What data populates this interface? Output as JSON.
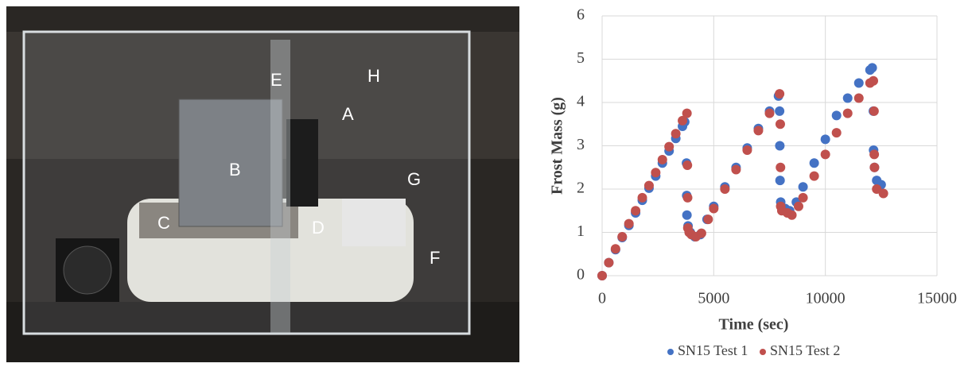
{
  "photo": {
    "labels": [
      "A",
      "B",
      "C",
      "D",
      "E",
      "F",
      "G",
      "H"
    ]
  },
  "chart_data": {
    "type": "scatter",
    "xlabel": "Time (sec)",
    "ylabel": "Frost Mass (g)",
    "xlim": [
      0,
      15000
    ],
    "xticks": [
      0,
      5000,
      10000,
      15000
    ],
    "ylim": [
      0,
      6
    ],
    "yticks": [
      0,
      1,
      2,
      3,
      4,
      5,
      6
    ],
    "grid": true,
    "legend": "bottom",
    "series": [
      {
        "name": "SN15 Test 1",
        "color": "#4472c4",
        "x": [
          0,
          300,
          600,
          900,
          1200,
          1500,
          1800,
          2100,
          2400,
          2700,
          3000,
          3300,
          3600,
          3700,
          3780,
          3790,
          3800,
          3850,
          3950,
          4150,
          4400,
          4700,
          5000,
          5500,
          6000,
          6500,
          7000,
          7500,
          7900,
          7950,
          7960,
          7970,
          8000,
          8200,
          8400,
          8700,
          9000,
          9500,
          10000,
          10500,
          11000,
          11500,
          12000,
          12100,
          12150,
          12160,
          12200,
          12300,
          12500
        ],
        "values": [
          0,
          0.3,
          0.6,
          0.88,
          1.16,
          1.45,
          1.74,
          2.02,
          2.3,
          2.6,
          2.88,
          3.17,
          3.45,
          3.55,
          2.6,
          1.85,
          1.4,
          1.15,
          1.0,
          0.9,
          0.95,
          1.3,
          1.6,
          2.05,
          2.5,
          2.95,
          3.4,
          3.8,
          4.15,
          3.8,
          3.0,
          2.2,
          1.7,
          1.55,
          1.5,
          1.7,
          2.05,
          2.6,
          3.15,
          3.7,
          4.1,
          4.45,
          4.75,
          4.8,
          3.8,
          2.9,
          2.5,
          2.2,
          2.1
        ]
      },
      {
        "name": "SN15 Test 2",
        "color": "#c0504d",
        "x": [
          0,
          300,
          600,
          900,
          1200,
          1500,
          1800,
          2100,
          2400,
          2700,
          3000,
          3300,
          3600,
          3800,
          3820,
          3830,
          3840,
          3900,
          4000,
          4200,
          4450,
          4750,
          5000,
          5500,
          6000,
          6500,
          7000,
          7500,
          7950,
          7980,
          7990,
          8000,
          8050,
          8300,
          8500,
          8800,
          9000,
          9500,
          10000,
          10500,
          11000,
          11500,
          12000,
          12150,
          12180,
          12190,
          12200,
          12300,
          12600
        ],
        "values": [
          0,
          0.3,
          0.62,
          0.9,
          1.2,
          1.5,
          1.8,
          2.08,
          2.38,
          2.68,
          2.98,
          3.28,
          3.58,
          3.75,
          2.55,
          1.8,
          1.1,
          1.0,
          0.95,
          0.9,
          0.98,
          1.3,
          1.55,
          2.0,
          2.45,
          2.9,
          3.35,
          3.75,
          4.2,
          3.5,
          2.5,
          1.6,
          1.5,
          1.45,
          1.4,
          1.6,
          1.8,
          2.3,
          2.8,
          3.3,
          3.75,
          4.1,
          4.45,
          4.5,
          3.8,
          2.8,
          2.5,
          2.0,
          1.9
        ]
      }
    ]
  }
}
